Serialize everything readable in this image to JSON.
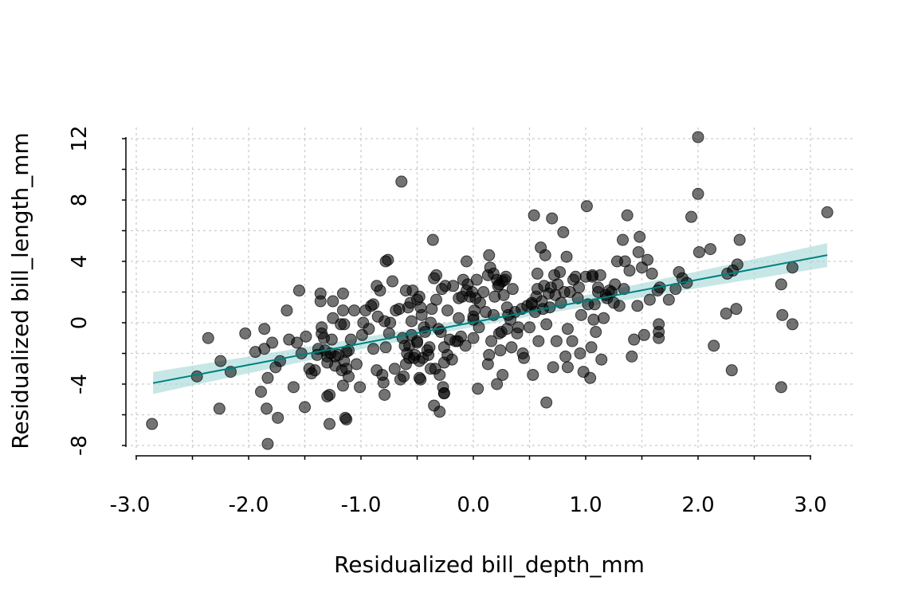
{
  "chart_data": {
    "type": "scatter",
    "title": "",
    "xlabel": "Residualized bill_depth_mm",
    "ylabel": "Residualized bill_length_mm",
    "xlim": [
      -3.0,
      3.3
    ],
    "ylim": [
      -8.6,
      12.8
    ],
    "x_ticks": [
      -3.0,
      -2.0,
      -1.0,
      0.0,
      1.0,
      2.0,
      3.0
    ],
    "x_tick_labels": [
      "-3.0",
      "-2.0",
      "-1.0",
      "0.0",
      "1.0",
      "2.0",
      "3.0"
    ],
    "x_minor_step": 0.5,
    "y_ticks": [
      -8,
      -4,
      0,
      4,
      8,
      12
    ],
    "y_tick_labels": [
      "-8",
      "-4",
      "0",
      "4",
      "8",
      "12"
    ],
    "y_minor_step": 2,
    "grid": true,
    "colors": {
      "points": "#000000",
      "fit_line": "#008080",
      "ci_band": "#a9dada"
    },
    "fit": {
      "intercept": 0.03,
      "slope": 1.39,
      "x_range": [
        -2.85,
        3.15
      ],
      "ci_halfwidth_at_0": 0.3,
      "ci_halfwidth_at_3": 0.75
    },
    "points": [
      [
        -2.86,
        -6.6
      ],
      [
        -2.46,
        -3.5
      ],
      [
        -2.36,
        -1.0
      ],
      [
        -2.26,
        -5.6
      ],
      [
        -2.25,
        -2.5
      ],
      [
        -2.16,
        -3.2
      ],
      [
        -2.03,
        -0.7
      ],
      [
        -1.94,
        -1.9
      ],
      [
        -1.89,
        -4.5
      ],
      [
        -1.86,
        -0.4
      ],
      [
        -1.86,
        -1.7
      ],
      [
        -1.84,
        -5.6
      ],
      [
        -1.83,
        -7.9
      ],
      [
        -1.83,
        -3.6
      ],
      [
        -1.79,
        -1.3
      ],
      [
        -1.76,
        -2.9
      ],
      [
        -1.74,
        -6.2
      ],
      [
        -1.72,
        -2.5
      ],
      [
        -1.66,
        0.8
      ],
      [
        -1.64,
        -1.1
      ],
      [
        -1.6,
        -4.2
      ],
      [
        -1.57,
        -1.3
      ],
      [
        -1.55,
        2.1
      ],
      [
        -1.53,
        -2.0
      ],
      [
        -1.5,
        -5.5
      ],
      [
        -1.49,
        -0.9
      ],
      [
        -1.46,
        -3.0
      ],
      [
        -1.44,
        -3.3
      ],
      [
        -1.41,
        -3.1
      ],
      [
        -1.39,
        -2.1
      ],
      [
        -1.38,
        -1.7
      ],
      [
        -1.36,
        1.9
      ],
      [
        -1.36,
        1.4
      ],
      [
        -1.35,
        -0.3
      ],
      [
        -1.35,
        -0.7
      ],
      [
        -1.33,
        -1.0
      ],
      [
        -1.32,
        -1.8
      ],
      [
        -1.3,
        -2.6
      ],
      [
        -1.3,
        -2.2
      ],
      [
        -1.3,
        -4.8
      ],
      [
        -1.28,
        -6.6
      ],
      [
        -1.28,
        -4.7
      ],
      [
        -1.27,
        -2.0
      ],
      [
        -1.26,
        -1.1
      ],
      [
        -1.25,
        1.4
      ],
      [
        -1.25,
        0.3
      ],
      [
        -1.23,
        -2.8
      ],
      [
        -1.23,
        -2.2
      ],
      [
        -1.2,
        -2.1
      ],
      [
        -1.18,
        -0.1
      ],
      [
        -1.17,
        -3.1
      ],
      [
        -1.16,
        -4.1
      ],
      [
        -1.16,
        1.9
      ],
      [
        -1.16,
        0.8
      ],
      [
        -1.15,
        -0.1
      ],
      [
        -1.15,
        -2.5
      ],
      [
        -1.14,
        -6.2
      ],
      [
        -1.13,
        -6.3
      ],
      [
        -1.13,
        -3.0
      ],
      [
        -1.13,
        -1.9
      ],
      [
        -1.11,
        -3.5
      ],
      [
        -1.11,
        -1.8
      ],
      [
        -1.09,
        -1.1
      ],
      [
        -1.06,
        0.8
      ],
      [
        -1.04,
        -2.7
      ],
      [
        -1.01,
        -4.2
      ],
      [
        -0.99,
        -0.8
      ],
      [
        -0.98,
        0.0
      ],
      [
        -0.96,
        0.8
      ],
      [
        -0.93,
        -0.4
      ],
      [
        -0.91,
        1.1
      ],
      [
        -0.89,
        1.2
      ],
      [
        -0.89,
        -1.7
      ],
      [
        -0.86,
        -3.1
      ],
      [
        -0.86,
        2.4
      ],
      [
        -0.85,
        0.4
      ],
      [
        -0.83,
        2.1
      ],
      [
        -0.81,
        -3.4
      ],
      [
        -0.8,
        -3.9
      ],
      [
        -0.79,
        -4.7
      ],
      [
        -0.79,
        0.1
      ],
      [
        -0.78,
        4.0
      ],
      [
        -0.78,
        -1.6
      ],
      [
        -0.76,
        4.1
      ],
      [
        -0.75,
        -0.7
      ],
      [
        -0.74,
        0.0
      ],
      [
        -0.72,
        2.7
      ],
      [
        -0.7,
        -3.0
      ],
      [
        -0.69,
        0.8
      ],
      [
        -0.66,
        0.9
      ],
      [
        -0.65,
        -3.7
      ],
      [
        -0.64,
        9.2
      ],
      [
        -0.63,
        -1.0
      ],
      [
        -0.62,
        -3.5
      ],
      [
        -0.61,
        -1.5
      ],
      [
        -0.6,
        2.1
      ],
      [
        -0.6,
        -2.7
      ],
      [
        -0.59,
        -2.0
      ],
      [
        -0.58,
        1.0
      ],
      [
        -0.57,
        -1.5
      ],
      [
        -0.57,
        -2.3
      ],
      [
        -0.56,
        1.3
      ],
      [
        -0.55,
        0.1
      ],
      [
        -0.55,
        -0.8
      ],
      [
        -0.54,
        2.1
      ],
      [
        -0.53,
        -2.3
      ],
      [
        -0.52,
        -2.1
      ],
      [
        -0.5,
        -1.3
      ],
      [
        -0.5,
        1.5
      ],
      [
        -0.5,
        -1.2
      ],
      [
        -0.48,
        -3.6
      ],
      [
        -0.48,
        1.7
      ],
      [
        -0.48,
        -2.5
      ],
      [
        -0.47,
        -3.7
      ],
      [
        -0.47,
        1.0
      ],
      [
        -0.46,
        0.5
      ],
      [
        -0.45,
        -2.3
      ],
      [
        -0.44,
        -0.3
      ],
      [
        -0.43,
        -0.6
      ],
      [
        -0.41,
        -1.8
      ],
      [
        -0.4,
        -2.1
      ],
      [
        -0.39,
        -1.6
      ],
      [
        -0.38,
        0.0
      ],
      [
        -0.38,
        -3.0
      ],
      [
        -0.37,
        0.9
      ],
      [
        -0.36,
        5.4
      ],
      [
        -0.35,
        2.9
      ],
      [
        -0.35,
        -5.4
      ],
      [
        -0.34,
        -3.0
      ],
      [
        -0.33,
        1.5
      ],
      [
        -0.33,
        3.1
      ],
      [
        -0.31,
        -0.4
      ],
      [
        -0.3,
        -3.4
      ],
      [
        -0.3,
        -5.8
      ],
      [
        -0.29,
        -0.6
      ],
      [
        -0.28,
        2.2
      ],
      [
        -0.27,
        -4.2
      ],
      [
        -0.26,
        -4.6
      ],
      [
        -0.26,
        -1.6
      ],
      [
        -0.26,
        -4.6
      ],
      [
        -0.26,
        -2.6
      ],
      [
        -0.25,
        2.4
      ],
      [
        -0.23,
        0.8
      ],
      [
        -0.23,
        -2.1
      ],
      [
        -0.21,
        -1.1
      ],
      [
        -0.19,
        -2.4
      ],
      [
        -0.18,
        2.4
      ],
      [
        -0.16,
        -1.2
      ],
      [
        -0.14,
        -1.2
      ],
      [
        -0.13,
        0.3
      ],
      [
        -0.13,
        1.6
      ],
      [
        -0.11,
        -0.9
      ],
      [
        -0.1,
        1.7
      ],
      [
        -0.09,
        2.8
      ],
      [
        -0.07,
        -1.5
      ],
      [
        -0.06,
        4.0
      ],
      [
        -0.06,
        2.1
      ],
      [
        -0.05,
        2.5
      ],
      [
        -0.03,
        1.7
      ],
      [
        -0.01,
        2.0
      ],
      [
        0.0,
        -1.0
      ],
      [
        0.0,
        0.2
      ],
      [
        0.0,
        0.4
      ],
      [
        0.01,
        0.8
      ],
      [
        0.02,
        1.6
      ],
      [
        0.03,
        2.8
      ],
      [
        0.04,
        -4.3
      ],
      [
        0.05,
        -0.3
      ],
      [
        0.06,
        1.3
      ],
      [
        0.09,
        2.0
      ],
      [
        0.11,
        0.7
      ],
      [
        0.13,
        3.1
      ],
      [
        0.13,
        -2.7
      ],
      [
        0.14,
        4.4
      ],
      [
        0.14,
        -2.1
      ],
      [
        0.15,
        3.6
      ],
      [
        0.16,
        -1.2
      ],
      [
        0.18,
        3.2
      ],
      [
        0.18,
        0.5
      ],
      [
        0.19,
        1.7
      ],
      [
        0.21,
        -4.0
      ],
      [
        0.21,
        2.8
      ],
      [
        0.22,
        2.4
      ],
      [
        0.23,
        2.5
      ],
      [
        0.23,
        -0.7
      ],
      [
        0.24,
        -1.8
      ],
      [
        0.25,
        -0.6
      ],
      [
        0.26,
        2.7
      ],
      [
        0.26,
        -3.4
      ],
      [
        0.27,
        1.8
      ],
      [
        0.28,
        2.8
      ],
      [
        0.29,
        3.0
      ],
      [
        0.3,
        1.0
      ],
      [
        0.3,
        -0.4
      ],
      [
        0.31,
        0.5
      ],
      [
        0.33,
        0.2
      ],
      [
        0.34,
        -1.6
      ],
      [
        0.35,
        2.2
      ],
      [
        0.37,
        0.7
      ],
      [
        0.39,
        -0.7
      ],
      [
        0.4,
        -0.3
      ],
      [
        0.43,
        0.9
      ],
      [
        0.44,
        -2.0
      ],
      [
        0.45,
        -2.3
      ],
      [
        0.48,
        1.1
      ],
      [
        0.5,
        -0.3
      ],
      [
        0.52,
        1.3
      ],
      [
        0.52,
        1.2
      ],
      [
        0.53,
        -3.4
      ],
      [
        0.54,
        7.0
      ],
      [
        0.55,
        0.7
      ],
      [
        0.56,
        1.7
      ],
      [
        0.57,
        2.2
      ],
      [
        0.57,
        3.2
      ],
      [
        0.58,
        -1.2
      ],
      [
        0.6,
        4.9
      ],
      [
        0.61,
        1.4
      ],
      [
        0.62,
        0.9
      ],
      [
        0.63,
        2.4
      ],
      [
        0.64,
        4.4
      ],
      [
        0.65,
        -5.2
      ],
      [
        0.65,
        -0.1
      ],
      [
        0.67,
        1.9
      ],
      [
        0.68,
        1.0
      ],
      [
        0.69,
        2.3
      ],
      [
        0.7,
        6.8
      ],
      [
        0.71,
        -2.9
      ],
      [
        0.72,
        3.1
      ],
      [
        0.73,
        1.8
      ],
      [
        0.74,
        -1.2
      ],
      [
        0.75,
        2.5
      ],
      [
        0.77,
        3.3
      ],
      [
        0.78,
        1.3
      ],
      [
        0.8,
        5.9
      ],
      [
        0.81,
        2.0
      ],
      [
        0.82,
        -2.2
      ],
      [
        0.83,
        4.3
      ],
      [
        0.84,
        -2.9
      ],
      [
        0.84,
        -0.4
      ],
      [
        0.86,
        2.0
      ],
      [
        0.88,
        -1.2
      ],
      [
        0.89,
        2.8
      ],
      [
        0.91,
        3.0
      ],
      [
        0.93,
        1.6
      ],
      [
        0.94,
        2.3
      ],
      [
        0.95,
        -2.0
      ],
      [
        0.96,
        0.5
      ],
      [
        0.98,
        -3.2
      ],
      [
        1.0,
        3.0
      ],
      [
        1.01,
        7.6
      ],
      [
        1.02,
        1.2
      ],
      [
        1.04,
        -3.6
      ],
      [
        1.05,
        -1.6
      ],
      [
        1.06,
        3.0
      ],
      [
        1.06,
        3.1
      ],
      [
        1.07,
        0.2
      ],
      [
        1.08,
        1.2
      ],
      [
        1.09,
        -0.6
      ],
      [
        1.11,
        2.0
      ],
      [
        1.11,
        2.3
      ],
      [
        1.13,
        3.1
      ],
      [
        1.14,
        -2.4
      ],
      [
        1.16,
        0.3
      ],
      [
        1.18,
        1.8
      ],
      [
        1.19,
        1.6
      ],
      [
        1.21,
        2.1
      ],
      [
        1.23,
        2.0
      ],
      [
        1.25,
        1.3
      ],
      [
        1.26,
        2.5
      ],
      [
        1.28,
        4.0
      ],
      [
        1.3,
        1.1
      ],
      [
        1.33,
        5.4
      ],
      [
        1.34,
        2.2
      ],
      [
        1.35,
        4.0
      ],
      [
        1.37,
        7.0
      ],
      [
        1.39,
        3.4
      ],
      [
        1.41,
        -2.2
      ],
      [
        1.43,
        -1.1
      ],
      [
        1.46,
        1.1
      ],
      [
        1.47,
        4.6
      ],
      [
        1.48,
        5.6
      ],
      [
        1.5,
        3.6
      ],
      [
        1.52,
        -0.8
      ],
      [
        1.55,
        4.1
      ],
      [
        1.57,
        1.5
      ],
      [
        1.59,
        3.2
      ],
      [
        1.64,
        2.1
      ],
      [
        1.65,
        -0.1
      ],
      [
        1.65,
        -0.6
      ],
      [
        1.65,
        -1.0
      ],
      [
        1.66,
        2.3
      ],
      [
        1.74,
        1.5
      ],
      [
        1.8,
        2.2
      ],
      [
        1.83,
        3.3
      ],
      [
        1.86,
        2.9
      ],
      [
        1.9,
        2.6
      ],
      [
        1.94,
        6.9
      ],
      [
        2.0,
        12.1
      ],
      [
        2.0,
        8.4
      ],
      [
        2.01,
        4.6
      ],
      [
        2.11,
        4.8
      ],
      [
        2.14,
        -1.5
      ],
      [
        2.25,
        0.6
      ],
      [
        2.26,
        3.2
      ],
      [
        2.3,
        -3.1
      ],
      [
        2.31,
        3.4
      ],
      [
        2.34,
        0.9
      ],
      [
        2.35,
        3.8
      ],
      [
        2.37,
        5.4
      ],
      [
        2.74,
        -4.2
      ],
      [
        2.74,
        2.5
      ],
      [
        2.75,
        0.5
      ],
      [
        2.84,
        -0.1
      ],
      [
        2.84,
        3.6
      ],
      [
        3.15,
        7.2
      ]
    ]
  }
}
